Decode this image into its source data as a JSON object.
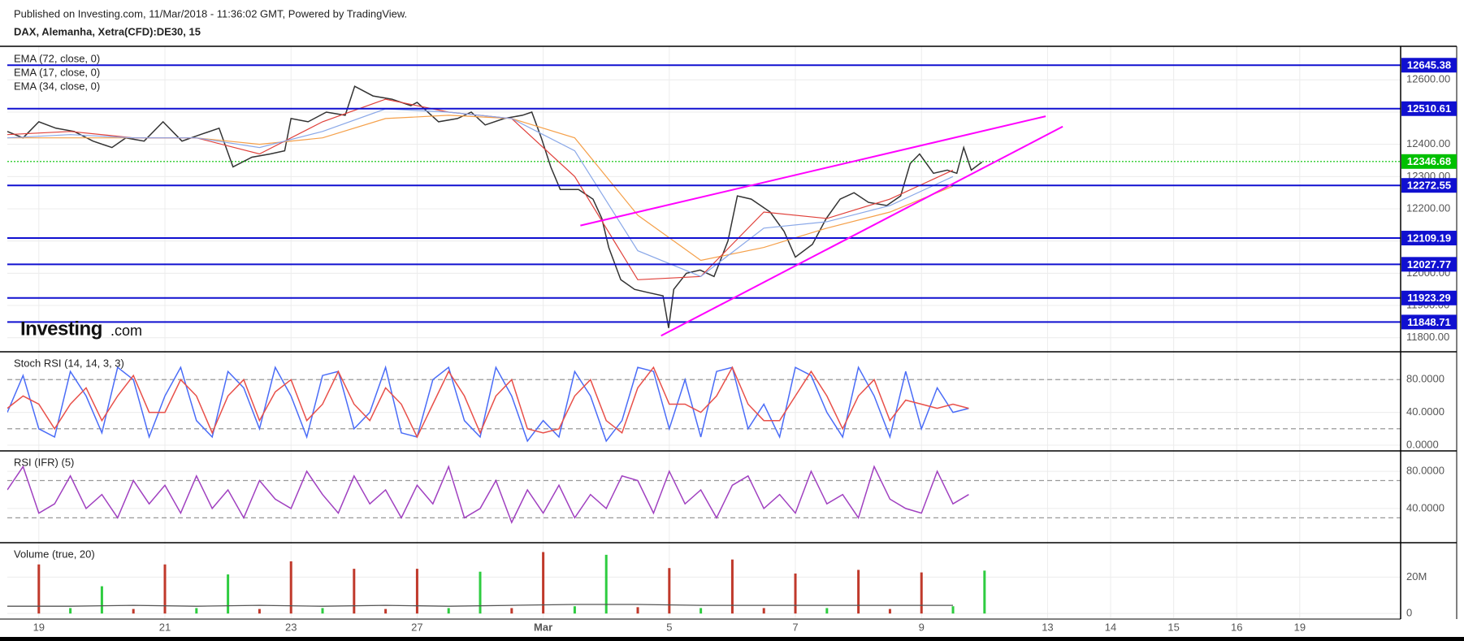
{
  "header": {
    "published": "Published on Investing.com, 11/Mar/2018 - 11:36:02 GMT, Powered by TradingView.",
    "symbol": "DAX, Alemanha, Xetra(CFD):DE30, 15"
  },
  "logo": {
    "main": "Investing",
    "suffix": ".com"
  },
  "chart_data": [
    {
      "type": "line",
      "ylim": [
        11759,
        12704
      ],
      "grid": true,
      "yticks": [
        {
          "value": 12600,
          "label": "12600.00"
        },
        {
          "value": 12500,
          "label": "12500.00"
        },
        {
          "value": 12400,
          "label": "12400.00"
        },
        {
          "value": 12300,
          "label": "12300.00"
        },
        {
          "value": 12200,
          "label": "12200.00"
        },
        {
          "value": 12100,
          "label": "12100.00"
        },
        {
          "value": 12000,
          "label": "12000.00"
        },
        {
          "value": 11900,
          "label": "11900.00"
        },
        {
          "value": 11800,
          "label": "11800.00"
        }
      ],
      "series": [
        {
          "color": "#333333",
          "x": [
            -0.5,
            -0.25,
            0,
            0.27,
            0.56,
            0.86,
            1.16,
            1.38,
            1.67,
            1.97,
            2.27,
            2.56,
            2.86,
            3.08,
            3.38,
            3.67,
            3.9,
            4,
            4.27,
            4.56,
            4.86,
            5.01,
            5.3,
            5.6,
            5.9,
            6,
            6.34,
            6.64,
            6.86,
            7.08,
            7.38,
            7.67,
            7.82,
            7.97,
            8.12,
            8.27,
            8.56,
            8.79,
            8.93,
            9.04,
            9.23,
            9.45,
            9.67,
            9.9,
            9.99,
            10.07,
            10.27,
            10.49,
            10.71,
            10.93,
            11.08,
            11.3,
            11.6,
            11.82,
            12,
            12.27,
            12.49,
            12.71,
            12.93,
            13.16,
            13.45,
            13.67,
            13.82,
            13.97,
            14.19,
            14.41,
            14.56,
            14.67,
            14.79,
            14.96
          ],
          "values": [
            12440,
            12420,
            12470,
            12450,
            12440,
            12410,
            12390,
            12420,
            12410,
            12470,
            12410,
            12430,
            12450,
            12330,
            12360,
            12370,
            12380,
            12480,
            12470,
            12500,
            12490,
            12580,
            12550,
            12540,
            12520,
            12530,
            12470,
            12480,
            12500,
            12460,
            12480,
            12490,
            12500,
            12420,
            12330,
            12260,
            12260,
            12230,
            12170,
            12080,
            11980,
            11950,
            11940,
            11930,
            11830,
            11950,
            12000,
            12010,
            11990,
            12100,
            12240,
            12230,
            12190,
            12130,
            12050,
            12090,
            12170,
            12230,
            12250,
            12220,
            12210,
            12240,
            12340,
            12370,
            12310,
            12320,
            12310,
            12390,
            12320,
            12345
          ]
        },
        {
          "name": "EMA (72, close, 0)",
          "color": "#f5a04a",
          "x": [
            -0.5,
            0.5,
            1.5,
            2.5,
            3.5,
            4.5,
            5.5,
            6.5,
            7.5,
            8.5,
            9.5,
            10.5,
            11.5,
            12.5,
            13.5,
            14.5
          ],
          "values": [
            12420,
            12420,
            12420,
            12420,
            12400,
            12420,
            12480,
            12490,
            12480,
            12420,
            12180,
            12040,
            12080,
            12140,
            12190,
            12270
          ]
        },
        {
          "name": "EMA (17, close, 0)",
          "color": "#e0403a",
          "x": [
            -0.5,
            0.5,
            1.5,
            2.5,
            3.5,
            4.5,
            5.5,
            6.5,
            7.5,
            8.5,
            9.5,
            10.5,
            11.5,
            12.5,
            13.5,
            14.5
          ],
          "values": [
            12430,
            12440,
            12420,
            12420,
            12370,
            12470,
            12540,
            12500,
            12480,
            12300,
            11980,
            11990,
            12190,
            12170,
            12230,
            12320
          ]
        },
        {
          "name": "EMA (34, close, 0)",
          "color": "#8aa8e8",
          "x": [
            -0.5,
            0.5,
            1.5,
            2.5,
            3.5,
            4.5,
            5.5,
            6.5,
            7.5,
            8.5,
            9.5,
            10.5,
            11.5,
            12.5,
            13.5,
            14.5
          ],
          "values": [
            12420,
            12430,
            12420,
            12420,
            12390,
            12440,
            12510,
            12500,
            12480,
            12380,
            12070,
            11990,
            12140,
            12160,
            12210,
            12300
          ]
        }
      ],
      "levels": [
        12645.38,
        12510.61,
        12272.55,
        12109.19,
        12027.77,
        11923.29,
        11848.71
      ],
      "level_color": "#1010d0",
      "last_price": 12346.68,
      "last_price_color": "#00c000",
      "trendlines": [
        {
          "x": [
            8.59,
            15.97
          ],
          "values": [
            12148,
            12487
          ]
        },
        {
          "x": [
            9.87,
            16.24
          ],
          "values": [
            11806,
            12455
          ]
        }
      ],
      "trendline_color": "#ff00ff"
    },
    {
      "type": "line",
      "title": "Stoch RSI (14, 14, 3, 3)",
      "ylim": [
        -6,
        113
      ],
      "grid": true,
      "yticks": [
        {
          "value": 80,
          "label": "80.0000"
        },
        {
          "value": 40,
          "label": "40.0000"
        },
        {
          "value": 0,
          "label": "0.0000"
        }
      ],
      "bands": [
        80,
        20
      ],
      "x": [
        -0.5,
        -0.25,
        0,
        0.25,
        0.5,
        0.75,
        1,
        1.25,
        1.5,
        1.75,
        2,
        2.25,
        2.5,
        2.75,
        3,
        3.25,
        3.5,
        3.75,
        4,
        4.25,
        4.5,
        4.75,
        5,
        5.25,
        5.5,
        5.75,
        6,
        6.25,
        6.5,
        6.75,
        7,
        7.25,
        7.5,
        7.75,
        8,
        8.25,
        8.5,
        8.75,
        9,
        9.25,
        9.5,
        9.75,
        10,
        10.25,
        10.5,
        10.75,
        11,
        11.25,
        11.5,
        11.75,
        12,
        12.25,
        12.5,
        12.75,
        13,
        13.25,
        13.5,
        13.75,
        14,
        14.25,
        14.5,
        14.75
      ],
      "series": [
        {
          "color": "#4a6cf7",
          "values": [
            40,
            85,
            20,
            10,
            90,
            60,
            15,
            95,
            80,
            10,
            60,
            95,
            30,
            10,
            90,
            70,
            20,
            95,
            60,
            10,
            85,
            90,
            20,
            40,
            95,
            15,
            10,
            80,
            95,
            30,
            10,
            95,
            60,
            5,
            30,
            10,
            90,
            60,
            5,
            30,
            95,
            90,
            20,
            80,
            10,
            90,
            95,
            20,
            50,
            10,
            95,
            85,
            40,
            10,
            95,
            60,
            10,
            90,
            20,
            70,
            40,
            45
          ]
        },
        {
          "color": "#e8504a",
          "values": [
            45,
            60,
            50,
            20,
            50,
            70,
            30,
            60,
            85,
            40,
            40,
            80,
            60,
            15,
            60,
            80,
            30,
            65,
            80,
            30,
            50,
            90,
            50,
            30,
            70,
            50,
            10,
            50,
            90,
            60,
            15,
            60,
            80,
            20,
            15,
            20,
            60,
            80,
            30,
            15,
            70,
            95,
            50,
            50,
            40,
            60,
            95,
            50,
            30,
            30,
            60,
            90,
            60,
            20,
            60,
            80,
            30,
            55,
            50,
            45,
            50,
            45
          ]
        }
      ]
    },
    {
      "type": "line",
      "title": "RSI (IFR) (5)",
      "ylim": [
        5,
        101
      ],
      "grid": true,
      "yticks": [
        {
          "value": 80,
          "label": "80.0000"
        },
        {
          "value": 40,
          "label": "40.0000"
        }
      ],
      "bands": [
        70,
        30
      ],
      "x": [
        -0.5,
        -0.25,
        0,
        0.25,
        0.5,
        0.75,
        1,
        1.25,
        1.5,
        1.75,
        2,
        2.25,
        2.5,
        2.75,
        3,
        3.25,
        3.5,
        3.75,
        4,
        4.25,
        4.5,
        4.75,
        5,
        5.25,
        5.5,
        5.75,
        6,
        6.25,
        6.5,
        6.75,
        7,
        7.25,
        7.5,
        7.75,
        8,
        8.25,
        8.5,
        8.75,
        9,
        9.25,
        9.5,
        9.75,
        10,
        10.25,
        10.5,
        10.75,
        11,
        11.25,
        11.5,
        11.75,
        12,
        12.25,
        12.5,
        12.75,
        13,
        13.25,
        13.5,
        13.75,
        14,
        14.25,
        14.5,
        14.75
      ],
      "series": [
        {
          "color": "#a040c0",
          "values": [
            60,
            85,
            35,
            45,
            75,
            40,
            55,
            30,
            70,
            45,
            65,
            35,
            75,
            40,
            60,
            30,
            70,
            50,
            40,
            80,
            55,
            35,
            75,
            45,
            60,
            30,
            65,
            45,
            85,
            30,
            40,
            70,
            25,
            60,
            35,
            65,
            30,
            55,
            40,
            75,
            70,
            35,
            80,
            45,
            60,
            30,
            65,
            75,
            40,
            55,
            35,
            80,
            45,
            55,
            30,
            85,
            50,
            40,
            35,
            80,
            45,
            55
          ]
        }
      ]
    },
    {
      "type": "bar",
      "title": "Volume (true, 20)",
      "ylim": [
        -2600000,
        38500000
      ],
      "grid": true,
      "yticks": [
        {
          "value": 20000000,
          "label": "20M"
        },
        0
      ],
      "xlim": [
        -0.5,
        21.6
      ],
      "xticks": [
        {
          "value": 0,
          "label": "19"
        },
        {
          "value": 2,
          "label": "21"
        },
        {
          "value": 4,
          "label": "23"
        },
        {
          "value": 6,
          "label": "27"
        },
        {
          "value": 8,
          "label": "Mar"
        },
        {
          "value": 10,
          "label": "5"
        },
        {
          "value": 12,
          "label": "7"
        },
        {
          "value": 14,
          "label": "9"
        },
        {
          "value": 16,
          "label": "13"
        },
        {
          "value": 17,
          "label": "14"
        },
        {
          "value": 18,
          "label": "15"
        },
        {
          "value": 19,
          "label": "16"
        },
        {
          "value": 20,
          "label": "19"
        }
      ],
      "x": [
        0,
        0.5,
        1,
        1.5,
        2,
        2.5,
        3,
        3.5,
        4,
        4.5,
        5,
        5.5,
        6,
        6.5,
        7,
        7.5,
        8,
        8.5,
        9,
        9.5,
        10,
        10.5,
        11,
        11.5,
        12,
        12.5,
        13,
        13.5,
        14,
        14.5,
        15
      ],
      "values": [
        27000000,
        3000000,
        15000000,
        2500000,
        27000000,
        3000000,
        21500000,
        2500000,
        28700000,
        3000000,
        24600000,
        2500000,
        24600000,
        3000000,
        23000000,
        3000000,
        33800000,
        4000000,
        32300000,
        3500000,
        25000000,
        3000000,
        29700000,
        3000000,
        22000000,
        3000000,
        24000000,
        2500000,
        22600000,
        4000000,
        23600000
      ],
      "colors": [
        "#c0392b",
        "#2ecc40",
        "#2ecc40",
        "#c0392b",
        "#c0392b",
        "#2ecc40",
        "#2ecc40",
        "#c0392b",
        "#c0392b",
        "#2ecc40",
        "#c0392b",
        "#c0392b",
        "#c0392b",
        "#2ecc40",
        "#2ecc40",
        "#c0392b",
        "#c0392b",
        "#2ecc40",
        "#2ecc40",
        "#c0392b",
        "#c0392b",
        "#2ecc40",
        "#c0392b",
        "#c0392b",
        "#c0392b",
        "#2ecc40",
        "#c0392b",
        "#c0392b",
        "#c0392b",
        "#2ecc40",
        "#2ecc40"
      ],
      "ma": {
        "color": "#555555",
        "x": [
          -0.5,
          0.5,
          1.5,
          2.5,
          3.5,
          4.5,
          5.5,
          6.5,
          7.5,
          8.5,
          9.5,
          10.5,
          11.5,
          12.5,
          13.5,
          14.5
        ],
        "values": [
          4000000,
          4000000,
          4500000,
          4000000,
          4500000,
          4000000,
          4500000,
          4000000,
          4500000,
          5000000,
          5000000,
          4500000,
          4500000,
          4500000,
          4500000,
          4500000
        ]
      }
    }
  ]
}
